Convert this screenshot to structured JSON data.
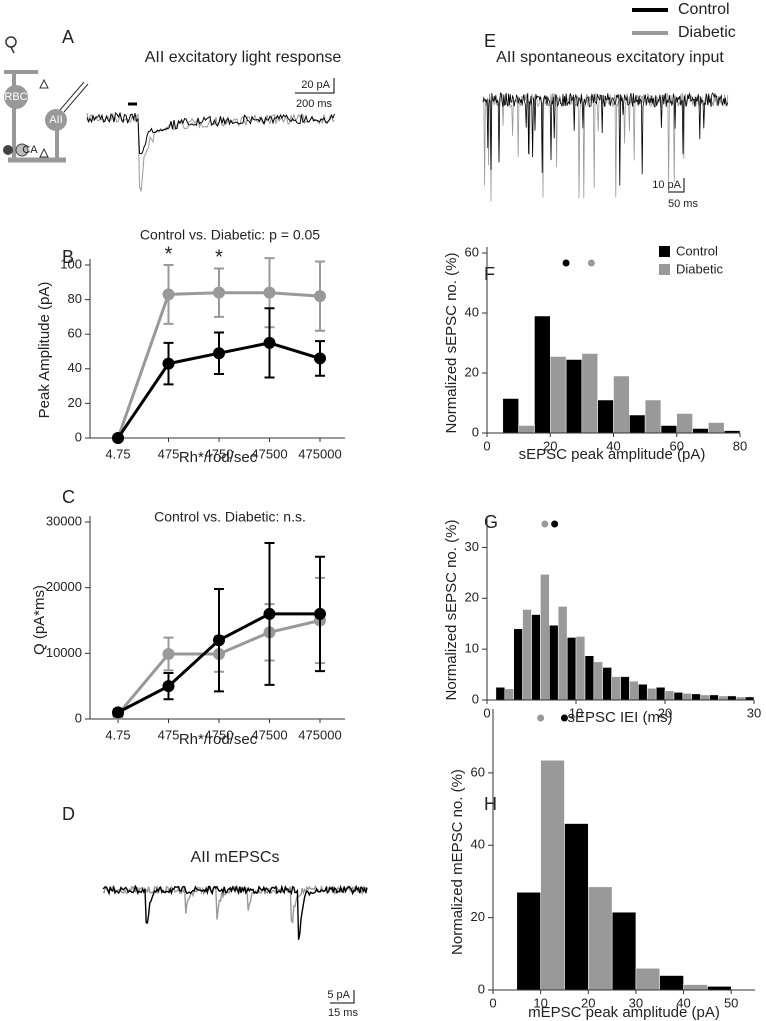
{
  "legend": [
    {
      "name": "Control",
      "color": "#000000"
    },
    {
      "name": "Diabetic",
      "color": "#999999"
    }
  ],
  "chart_data": [
    {
      "type": "trace",
      "panel": "A",
      "title": "AII excitatory light response",
      "scale_bar": [
        "20 pA",
        "200 ms"
      ],
      "schematic_labels": [
        "RBC",
        "AII",
        "CA"
      ]
    },
    {
      "type": "line",
      "panel": "B",
      "title": "Control vs. Diabetic: p = 0.05",
      "xlabel": "Rh*/rod/sec",
      "ylabel": "Peak Amplitude (pA)",
      "categories": [
        "4.75",
        "475",
        "4750",
        "47500",
        "475000"
      ],
      "ylim": [
        0,
        100
      ],
      "yticks": [
        0,
        20,
        40,
        60,
        80,
        100
      ],
      "series": [
        {
          "color": "#000000",
          "values": [
            0,
            43,
            49,
            55,
            46
          ],
          "errors": [
            0,
            12,
            12,
            20,
            10
          ]
        },
        {
          "color": "#999999",
          "values": [
            0,
            83,
            84,
            84,
            82
          ],
          "errors": [
            0,
            17,
            14,
            20,
            20
          ]
        }
      ],
      "annotations": [
        {
          "text": "*",
          "category": "475"
        },
        {
          "text": "*",
          "category": "4750"
        }
      ]
    },
    {
      "type": "line",
      "panel": "C",
      "title": "Control vs. Diabetic: n.s.",
      "xlabel": "Rh*/rod/sec",
      "ylabel": "Q (pA*ms)",
      "categories": [
        "4.75",
        "475",
        "4750",
        "47500",
        "475000"
      ],
      "ylim": [
        0,
        30000
      ],
      "yticks": [
        0,
        10000,
        20000,
        30000
      ],
      "series": [
        {
          "color": "#000000",
          "values": [
            1000,
            5000,
            12000,
            16000,
            16000
          ],
          "errors": [
            500,
            2000,
            7800,
            10800,
            8700
          ]
        },
        {
          "color": "#999999",
          "values": [
            700,
            9900,
            9900,
            13200,
            15000
          ],
          "errors": [
            300,
            2500,
            2700,
            4300,
            6500
          ]
        }
      ]
    },
    {
      "type": "trace",
      "panel": "D",
      "title": "AII mEPSCs",
      "scale_bar": [
        "5 pA",
        "15 ms"
      ]
    },
    {
      "type": "trace",
      "panel": "E",
      "title": "AII spontaneous excitatory input",
      "scale_bar": [
        "10 pA",
        "50 ms"
      ]
    },
    {
      "type": "histogram",
      "panel": "F",
      "xlabel": "sEPSC peak amplitude (pA)",
      "ylabel": "Normalized sEPSC no. (%)",
      "bins": [
        0,
        5,
        10,
        15,
        20,
        25,
        30,
        35,
        40,
        45,
        50,
        55,
        60,
        65,
        70,
        75,
        80
      ],
      "xlim": [
        0,
        80
      ],
      "xticks": [
        0,
        20,
        40,
        60,
        80
      ],
      "ylim": [
        0,
        60
      ],
      "yticks": [
        0,
        20,
        40,
        60
      ],
      "legend": true,
      "series": [
        {
          "name": "Control",
          "color": "#000000",
          "mean": 25,
          "values": [
            null,
            11.5,
            null,
            39,
            null,
            24.5,
            null,
            11,
            null,
            6,
            null,
            2.5,
            null,
            1.5,
            null,
            0.8
          ]
        },
        {
          "name": "Diabetic",
          "color": "#999999",
          "mean": 33,
          "values": [
            null,
            null,
            2.5,
            null,
            25.5,
            null,
            26.5,
            null,
            19,
            null,
            11,
            null,
            6.5,
            null,
            3.5,
            null
          ]
        }
      ]
    },
    {
      "type": "histogram",
      "panel": "G",
      "xlabel": "sEPSC IEI (ms)",
      "ylabel": "Normalized sEPSC no. (%)",
      "bins": [
        1,
        2,
        3,
        4,
        5,
        6,
        7,
        8,
        9,
        10,
        11,
        12,
        13,
        14,
        15,
        16,
        17,
        18,
        19,
        20,
        21,
        22,
        23,
        24,
        25,
        26,
        27,
        28,
        29,
        30
      ],
      "xlim": [
        0,
        30
      ],
      "xticks": [
        0,
        10,
        20,
        30
      ],
      "ylim": [
        0,
        35
      ],
      "yticks": [
        0,
        10,
        20,
        30
      ],
      "series": [
        {
          "color": "#000000",
          "mean": 7.6,
          "values": [
            2.5,
            null,
            14,
            null,
            16.8,
            null,
            14.7,
            null,
            12.3,
            null,
            8.7,
            null,
            6.4,
            null,
            4.6,
            null,
            3.1,
            null,
            2.5,
            null,
            1.5,
            null,
            1.2,
            null,
            1.0,
            null,
            0.8,
            null,
            0.6
          ]
        },
        {
          "color": "#999999",
          "mean": 6.5,
          "values": [
            null,
            2.2,
            null,
            17.8,
            null,
            24.7,
            null,
            18.4,
            null,
            12.5,
            null,
            7.5,
            null,
            4.6,
            null,
            3.7,
            null,
            2.3,
            null,
            1.8,
            null,
            1.3,
            null,
            1.0,
            null,
            0.8,
            null,
            0.6,
            null
          ]
        }
      ]
    },
    {
      "type": "histogram",
      "panel": "H",
      "xlabel": "mEPSC peak amplitude (pA)",
      "ylabel": "Normalized mEPSC no. (%)",
      "bins": [
        5,
        10,
        15,
        20,
        25,
        30,
        35,
        40,
        45,
        50
      ],
      "xlim": [
        0,
        55
      ],
      "xticks": [
        0,
        10,
        20,
        30,
        40,
        50
      ],
      "ylim": [
        0,
        76
      ],
      "yticks": [
        0,
        20,
        40,
        60
      ],
      "series": [
        {
          "color": "#000000",
          "mean": 15,
          "values": [
            27,
            null,
            46,
            null,
            21.5,
            null,
            4,
            null,
            1
          ]
        },
        {
          "color": "#999999",
          "mean": 10,
          "values": [
            null,
            63.5,
            null,
            28.5,
            null,
            6,
            null,
            1.5,
            null
          ]
        }
      ]
    }
  ]
}
